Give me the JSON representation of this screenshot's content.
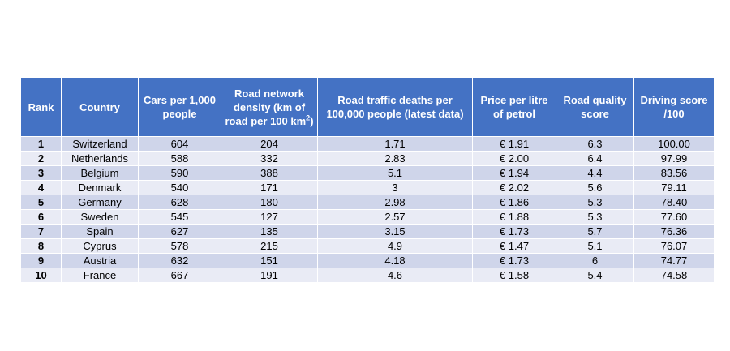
{
  "table": {
    "headers": {
      "rank": "Rank",
      "country": "Country",
      "cars": "Cars per 1,000 people",
      "road_density_main": "Road network density (km of road per 100 km",
      "road_density_sup": "2",
      "road_density_end": ")",
      "deaths": "Road traffic deaths per 100,000 people (latest data)",
      "petrol": "Price per litre of petrol",
      "quality": "Road quality score",
      "score": "Driving score /100"
    },
    "rows": [
      {
        "rank": "1",
        "country": "Switzerland",
        "cars": "604",
        "density": "204",
        "deaths": "1.71",
        "petrol": "€ 1.91",
        "quality": "6.3",
        "score": "100.00"
      },
      {
        "rank": "2",
        "country": "Netherlands",
        "cars": "588",
        "density": "332",
        "deaths": "2.83",
        "petrol": "€ 2.00",
        "quality": "6.4",
        "score": "97.99"
      },
      {
        "rank": "3",
        "country": "Belgium",
        "cars": "590",
        "density": "388",
        "deaths": "5.1",
        "petrol": "€ 1.94",
        "quality": "4.4",
        "score": "83.56"
      },
      {
        "rank": "4",
        "country": "Denmark",
        "cars": "540",
        "density": "171",
        "deaths": "3",
        "petrol": "€ 2.02",
        "quality": "5.6",
        "score": "79.11"
      },
      {
        "rank": "5",
        "country": "Germany",
        "cars": "628",
        "density": "180",
        "deaths": "2.98",
        "petrol": "€ 1.86",
        "quality": "5.3",
        "score": "78.40"
      },
      {
        "rank": "6",
        "country": "Sweden",
        "cars": "545",
        "density": "127",
        "deaths": "2.57",
        "petrol": "€ 1.88",
        "quality": "5.3",
        "score": "77.60"
      },
      {
        "rank": "7",
        "country": "Spain",
        "cars": "627",
        "density": "135",
        "deaths": "3.15",
        "petrol": "€ 1.73",
        "quality": "5.7",
        "score": "76.36"
      },
      {
        "rank": "8",
        "country": "Cyprus",
        "cars": "578",
        "density": "215",
        "deaths": "4.9",
        "petrol": "€ 1.47",
        "quality": "5.1",
        "score": "76.07"
      },
      {
        "rank": "9",
        "country": "Austria",
        "cars": "632",
        "density": "151",
        "deaths": "4.18",
        "petrol": "€ 1.73",
        "quality": "6",
        "score": "74.77"
      },
      {
        "rank": "10",
        "country": "France",
        "cars": "667",
        "density": "191",
        "deaths": "4.6",
        "petrol": "€ 1.58",
        "quality": "5.4",
        "score": "74.58"
      }
    ]
  },
  "colors": {
    "header_bg": "#4472c4",
    "header_text": "#ffffff",
    "row_odd": "#cfd5ea",
    "row_even": "#e9ebf5"
  }
}
